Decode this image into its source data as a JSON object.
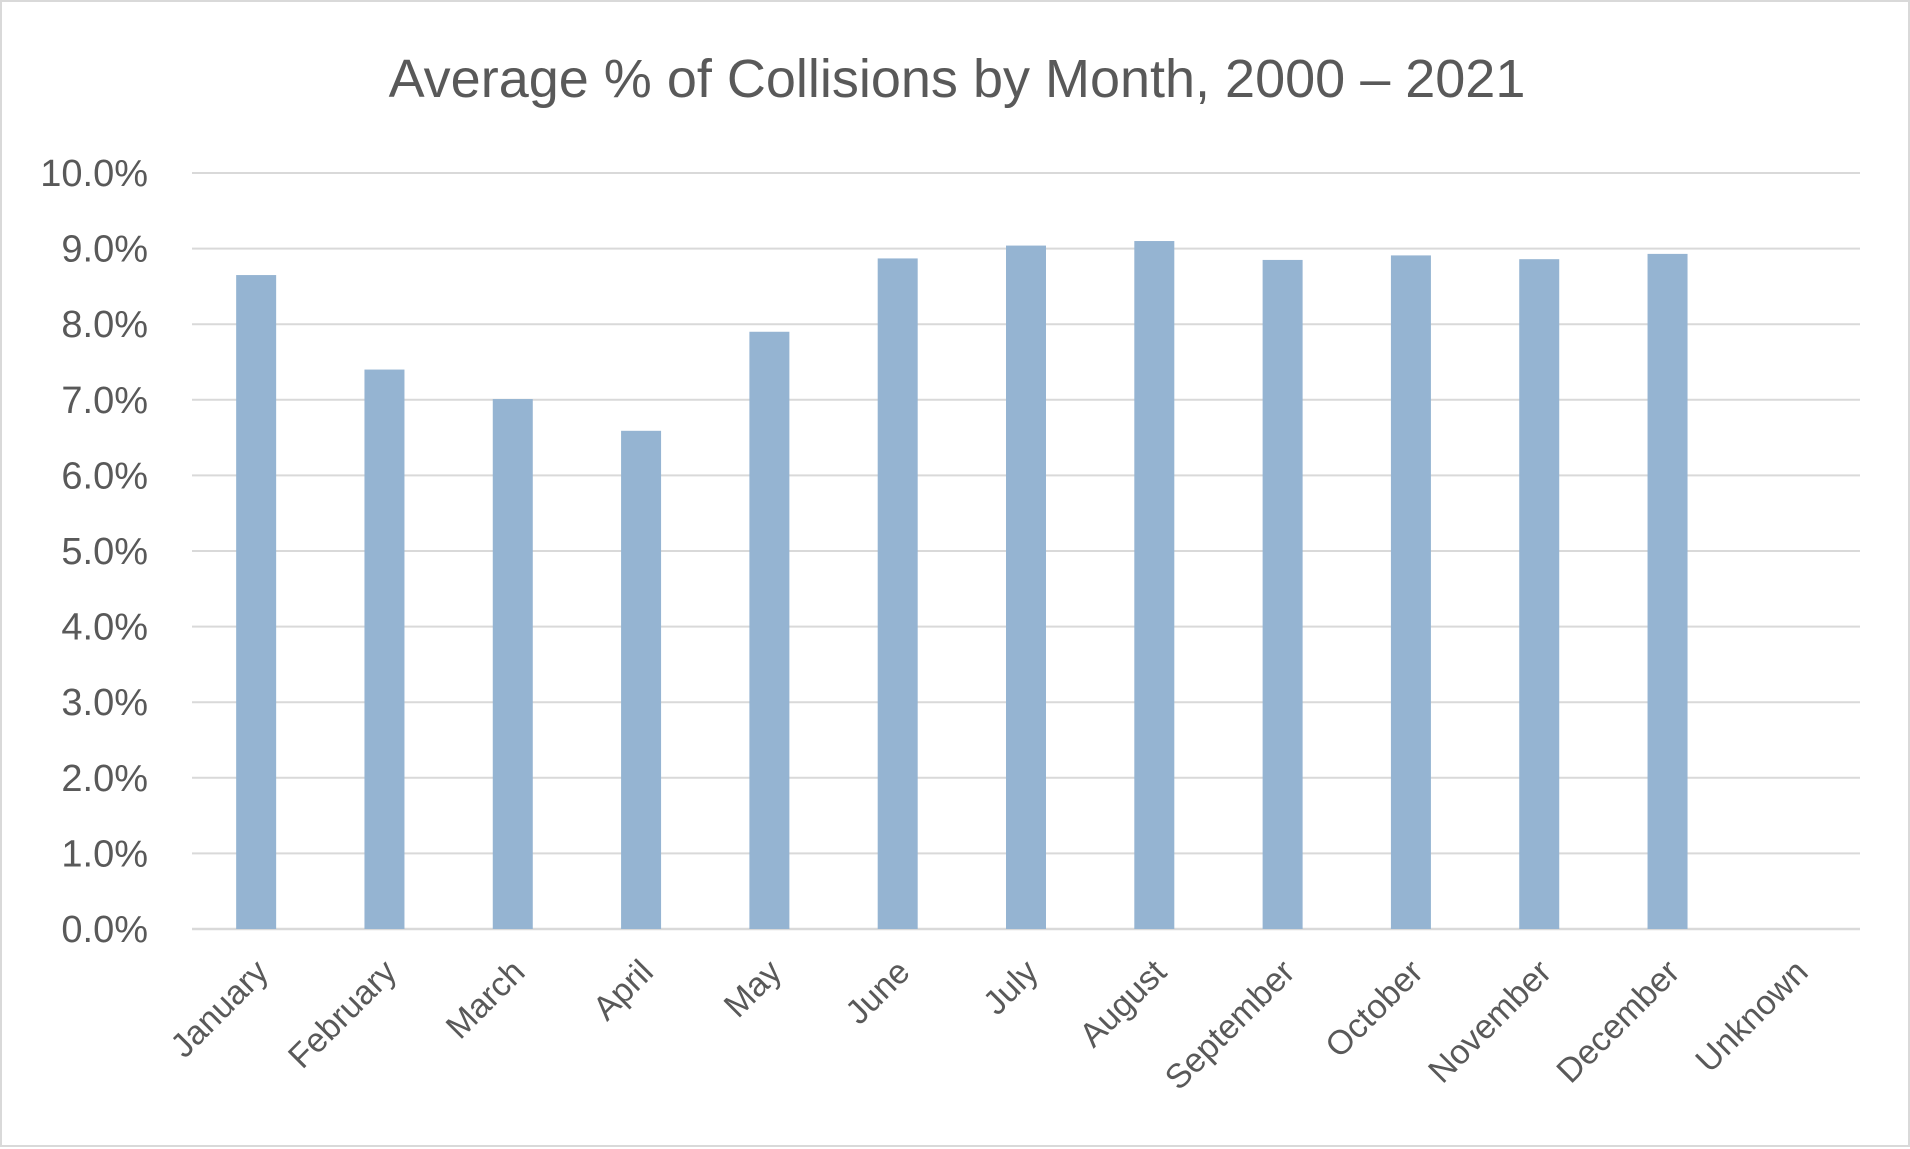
{
  "chart_data": {
    "type": "bar",
    "title": "Average % of Collisions by Month, 2000 – 2021",
    "xlabel": "",
    "ylabel": "",
    "categories": [
      "January",
      "February",
      "March",
      "April",
      "May",
      "June",
      "July",
      "August",
      "September",
      "October",
      "November",
      "December",
      "Unknown"
    ],
    "values": [
      8.65,
      7.4,
      7.01,
      6.59,
      7.9,
      8.87,
      9.04,
      9.1,
      8.85,
      8.91,
      8.86,
      8.93,
      0.0
    ],
    "ylim": [
      0,
      10
    ],
    "ytick_step": 1,
    "ytick_labels": [
      "0.0%",
      "1.0%",
      "2.0%",
      "3.0%",
      "4.0%",
      "5.0%",
      "6.0%",
      "7.0%",
      "8.0%",
      "9.0%",
      "10.0%"
    ],
    "value_unit": "%",
    "grid": true,
    "legend": "none",
    "bar_color": "#95b4d2",
    "grid_color": "#d9d9d9",
    "text_color": "#595959"
  }
}
